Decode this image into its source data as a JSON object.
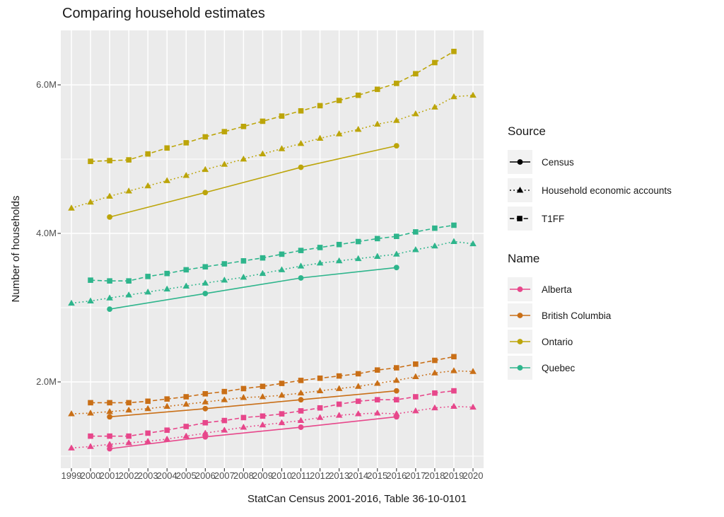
{
  "title": "Comparing household estimates",
  "y_axis": {
    "label": "Number of households",
    "ticks": [
      {
        "text": "2.0M",
        "value": 2.0
      },
      {
        "text": "4.0M",
        "value": 4.0
      },
      {
        "text": "6.0M",
        "value": 6.0
      }
    ]
  },
  "x_axis": {
    "label": "StatCan Census 2001-2016, Table 36-10-0101",
    "tick_years": [
      1999,
      2000,
      2001,
      2002,
      2003,
      2004,
      2005,
      2006,
      2007,
      2008,
      2009,
      2010,
      2011,
      2012,
      2013,
      2014,
      2015,
      2016,
      2017,
      2018,
      2019,
      2020
    ]
  },
  "legend_source": {
    "title": "Source",
    "items": [
      {
        "label": "Census",
        "marker": "circle",
        "dash": "solid"
      },
      {
        "label": "Household economic accounts",
        "marker": "triangle",
        "dash": "dotted"
      },
      {
        "label": "T1FF",
        "marker": "square",
        "dash": "dashed"
      }
    ]
  },
  "legend_name": {
    "title": "Name",
    "items": [
      {
        "label": "Alberta",
        "color": "#E7478B"
      },
      {
        "label": "British Columbia",
        "color": "#C96F17"
      },
      {
        "label": "Ontario",
        "color": "#BCA50A"
      },
      {
        "label": "Quebec",
        "color": "#2EB58C"
      }
    ]
  },
  "chart_data": {
    "type": "line",
    "title": "Comparing household estimates",
    "xlabel": "StatCan Census 2001-2016, Table 36-10-0101",
    "ylabel": "Number of households",
    "unit": "millions of households",
    "xlim": [
      1998.45,
      2020.55
    ],
    "ylim": [
      0.84,
      6.73
    ],
    "x_major_gridlines": [
      1999,
      2000,
      2001,
      2002,
      2003,
      2004,
      2005,
      2006,
      2007,
      2008,
      2009,
      2010,
      2011,
      2012,
      2013,
      2014,
      2015,
      2016,
      2017,
      2018,
      2019,
      2020
    ],
    "y_major_gridlines": [
      2,
      4,
      6
    ],
    "y_minor_gridlines": [
      1,
      3,
      5
    ],
    "panel_background": "#EBEBEB",
    "gridline_color": "#FFFFFF",
    "colors": {
      "Alberta": "#E7478B",
      "British Columbia": "#C96F17",
      "Ontario": "#BCA50A",
      "Quebec": "#2EB58C"
    },
    "source_styles": {
      "Census": {
        "marker": "circle",
        "dash": "solid"
      },
      "Household economic accounts": {
        "marker": "triangle",
        "dash": "dotted"
      },
      "T1FF": {
        "marker": "square",
        "dash": "dashed"
      }
    },
    "years": {
      "Census": [
        2001,
        2006,
        2011,
        2016
      ],
      "Household economic accounts": [
        1999,
        2000,
        2001,
        2002,
        2003,
        2004,
        2005,
        2006,
        2007,
        2008,
        2009,
        2010,
        2011,
        2012,
        2013,
        2014,
        2015,
        2016,
        2017,
        2018,
        2019,
        2020
      ],
      "T1FF": [
        2000,
        2001,
        2002,
        2003,
        2004,
        2005,
        2006,
        2007,
        2008,
        2009,
        2010,
        2011,
        2012,
        2013,
        2014,
        2015,
        2016,
        2017,
        2018,
        2019
      ]
    },
    "series": [
      {
        "name": "Ontario",
        "source": "T1FF",
        "values": [
          4.97,
          4.98,
          4.99,
          5.07,
          5.15,
          5.22,
          5.3,
          5.37,
          5.44,
          5.51,
          5.58,
          5.65,
          5.72,
          5.79,
          5.86,
          5.94,
          6.02,
          6.15,
          6.3,
          6.45
        ]
      },
      {
        "name": "Ontario",
        "source": "Household economic accounts",
        "values": [
          4.34,
          4.42,
          4.5,
          4.57,
          4.64,
          4.71,
          4.78,
          4.86,
          4.93,
          5.0,
          5.07,
          5.14,
          5.21,
          5.28,
          5.34,
          5.4,
          5.47,
          5.52,
          5.61,
          5.7,
          5.84,
          5.86
        ]
      },
      {
        "name": "Ontario",
        "source": "Census",
        "values": [
          4.22,
          4.55,
          4.89,
          5.18
        ]
      },
      {
        "name": "Quebec",
        "source": "T1FF",
        "values": [
          3.37,
          3.36,
          3.36,
          3.42,
          3.46,
          3.51,
          3.55,
          3.59,
          3.63,
          3.67,
          3.72,
          3.77,
          3.81,
          3.85,
          3.89,
          3.93,
          3.96,
          4.02,
          4.07,
          4.11
        ]
      },
      {
        "name": "Quebec",
        "source": "Household economic accounts",
        "values": [
          3.06,
          3.09,
          3.13,
          3.17,
          3.21,
          3.25,
          3.29,
          3.33,
          3.37,
          3.41,
          3.46,
          3.51,
          3.56,
          3.6,
          3.63,
          3.66,
          3.69,
          3.72,
          3.78,
          3.83,
          3.89,
          3.86
        ]
      },
      {
        "name": "Quebec",
        "source": "Census",
        "values": [
          2.98,
          3.19,
          3.4,
          3.54
        ]
      },
      {
        "name": "British Columbia",
        "source": "T1FF",
        "values": [
          1.72,
          1.72,
          1.72,
          1.74,
          1.77,
          1.8,
          1.84,
          1.87,
          1.91,
          1.94,
          1.98,
          2.02,
          2.05,
          2.08,
          2.11,
          2.16,
          2.19,
          2.24,
          2.29,
          2.34
        ]
      },
      {
        "name": "British Columbia",
        "source": "Household economic accounts",
        "values": [
          1.57,
          1.58,
          1.6,
          1.62,
          1.64,
          1.67,
          1.7,
          1.73,
          1.76,
          1.79,
          1.8,
          1.82,
          1.85,
          1.88,
          1.91,
          1.94,
          1.98,
          2.02,
          2.07,
          2.12,
          2.15,
          2.14
        ]
      },
      {
        "name": "British Columbia",
        "source": "Census",
        "values": [
          1.53,
          1.64,
          1.76,
          1.88
        ]
      },
      {
        "name": "Alberta",
        "source": "T1FF",
        "values": [
          1.27,
          1.27,
          1.27,
          1.31,
          1.35,
          1.4,
          1.45,
          1.48,
          1.52,
          1.54,
          1.57,
          1.61,
          1.65,
          1.7,
          1.74,
          1.76,
          1.76,
          1.8,
          1.85,
          1.88
        ]
      },
      {
        "name": "Alberta",
        "source": "Household economic accounts",
        "values": [
          1.11,
          1.13,
          1.16,
          1.18,
          1.2,
          1.23,
          1.27,
          1.31,
          1.35,
          1.39,
          1.42,
          1.45,
          1.48,
          1.52,
          1.55,
          1.57,
          1.58,
          1.57,
          1.61,
          1.65,
          1.67,
          1.66
        ]
      },
      {
        "name": "Alberta",
        "source": "Census",
        "values": [
          1.1,
          1.26,
          1.39,
          1.53
        ]
      }
    ]
  }
}
